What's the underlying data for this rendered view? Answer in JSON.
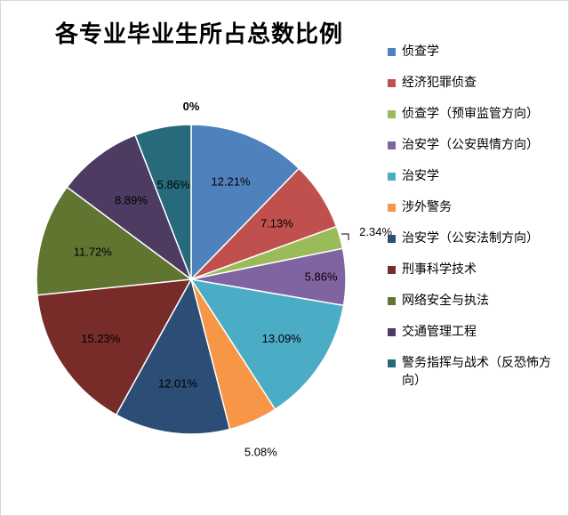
{
  "chart_data": {
    "type": "pie",
    "title": "各专业毕业生所占总数比例",
    "legend_position": "right",
    "slices": [
      {
        "name": "侦查学",
        "value": 12.21,
        "label": "12.21%",
        "color": "#4F81BD"
      },
      {
        "name": "经济犯罪侦查",
        "value": 7.13,
        "label": "7.13%",
        "color": "#C0504D"
      },
      {
        "name": "侦查学（预审监管方向）",
        "value": 2.34,
        "label": "2.34%",
        "color": "#9BBB59"
      },
      {
        "name": "治安学（公安舆情方向）",
        "value": 5.86,
        "label": "5.86%",
        "color": "#8064A2"
      },
      {
        "name": "治安学",
        "value": 13.09,
        "label": "13.09%",
        "color": "#4BACC6"
      },
      {
        "name": "涉外警务",
        "value": 5.08,
        "label": "5.08%",
        "color": "#F79646"
      },
      {
        "name": "治安学（公安法制方向）",
        "value": 12.01,
        "label": "12.01%",
        "color": "#2C4D75"
      },
      {
        "name": "刑事科学技术",
        "value": 15.23,
        "label": "15.23%",
        "color": "#772C2A"
      },
      {
        "name": "网络安全与执法",
        "value": 11.72,
        "label": "11.72%",
        "color": "#5F7530"
      },
      {
        "name": "交通管理工程",
        "value": 8.89,
        "label": "8.89%",
        "color": "#4D3B62"
      },
      {
        "name": "警务指挥与战术（反恐怖方向）",
        "value": 5.86,
        "label": "5.86%",
        "color": "#276A7C"
      },
      {
        "name": "",
        "value": 0,
        "label": "0%",
        "color": "#ffffff"
      }
    ]
  }
}
